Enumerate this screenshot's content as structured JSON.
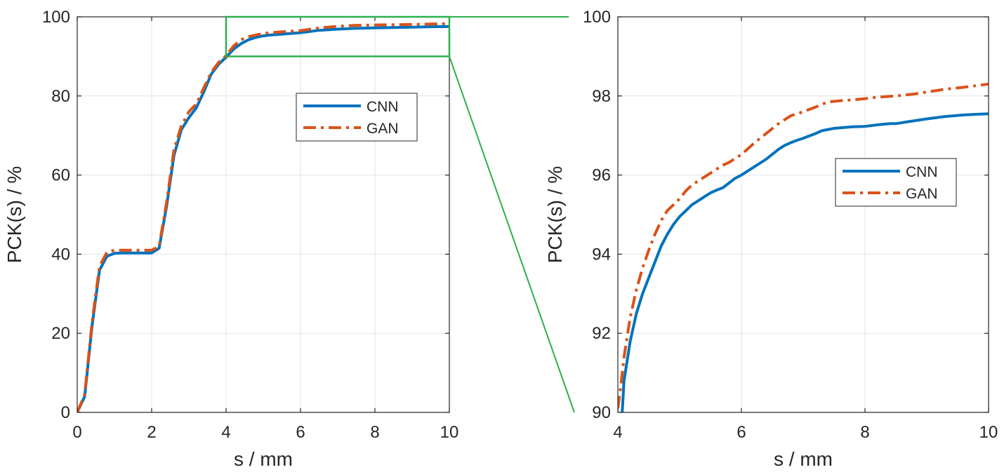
{
  "chart_data": [
    {
      "type": "line",
      "panel": "left",
      "xlabel": "s / mm",
      "ylabel": "PCK(s) / %",
      "xlim": [
        0,
        10
      ],
      "ylim": [
        0,
        100
      ],
      "xticks": [
        0,
        2,
        4,
        6,
        8,
        10
      ],
      "yticks": [
        0,
        20,
        40,
        60,
        80,
        100
      ],
      "grid": true,
      "legend_position": "upper-right-center",
      "series": [
        {
          "name": "CNN",
          "color": "#0072BD",
          "style": "solid",
          "x": [
            0,
            0.2,
            0.4,
            0.6,
            0.8,
            1.0,
            1.2,
            1.5,
            2.0,
            2.2,
            2.4,
            2.6,
            2.8,
            3.0,
            3.2,
            3.4,
            3.6,
            3.8,
            4.0,
            4.2,
            4.4,
            4.6,
            4.8,
            5.0,
            5.2,
            5.5,
            6.0,
            6.5,
            7.0,
            7.5,
            8.0,
            8.5,
            9.0,
            9.5,
            10.0
          ],
          "y": [
            0,
            4,
            22,
            36,
            39.5,
            40.2,
            40.3,
            40.3,
            40.3,
            41.5,
            52,
            65,
            71.5,
            74.5,
            77,
            81,
            85.5,
            88,
            89.8,
            91.8,
            93.2,
            94.2,
            94.8,
            95.2,
            95.4,
            95.6,
            96.0,
            96.6,
            96.9,
            97.1,
            97.2,
            97.3,
            97.4,
            97.5,
            97.55
          ]
        },
        {
          "name": "GAN",
          "color": "#D95319",
          "style": "dashdot",
          "x": [
            0,
            0.2,
            0.4,
            0.6,
            0.8,
            1.0,
            1.2,
            1.5,
            2.0,
            2.2,
            2.4,
            2.6,
            2.8,
            3.0,
            3.2,
            3.4,
            3.6,
            3.8,
            4.0,
            4.2,
            4.4,
            4.6,
            4.8,
            5.0,
            5.2,
            5.5,
            6.0,
            6.5,
            7.0,
            7.5,
            8.0,
            8.5,
            9.0,
            9.5,
            10.0
          ],
          "y": [
            0,
            4.5,
            23,
            37,
            40.5,
            41,
            41,
            41,
            41,
            42,
            53,
            66.5,
            72.5,
            76,
            78,
            82,
            86,
            88.5,
            90.2,
            92.6,
            94.2,
            95.0,
            95.4,
            95.8,
            96.0,
            96.2,
            96.5,
            97.2,
            97.6,
            97.85,
            97.95,
            98.0,
            98.1,
            98.2,
            98.3
          ]
        }
      ],
      "annotation": "zoom-box",
      "zoom_box": {
        "xlim": [
          4,
          10
        ],
        "ylim": [
          90,
          100
        ],
        "color": "#2DB04C"
      }
    },
    {
      "type": "line",
      "panel": "right",
      "xlabel": "s / mm",
      "ylabel": "PCK(s) / %",
      "xlim": [
        4,
        10
      ],
      "ylim": [
        90,
        100
      ],
      "xticks": [
        4,
        6,
        8,
        10
      ],
      "yticks": [
        90,
        92,
        94,
        96,
        98,
        100
      ],
      "grid": true,
      "legend_position": "right-middle",
      "series": [
        {
          "name": "CNN",
          "color": "#0072BD",
          "style": "solid",
          "x": [
            4.07,
            4.1,
            4.2,
            4.3,
            4.4,
            4.5,
            4.6,
            4.7,
            4.8,
            4.9,
            5.0,
            5.1,
            5.2,
            5.3,
            5.4,
            5.5,
            5.6,
            5.7,
            5.8,
            5.9,
            6.0,
            6.2,
            6.4,
            6.6,
            6.7,
            6.8,
            6.9,
            7.0,
            7.2,
            7.3,
            7.5,
            7.8,
            8.0,
            8.2,
            8.4,
            8.5,
            8.7,
            9.0,
            9.3,
            9.6,
            10.0
          ],
          "y": [
            90.0,
            90.8,
            91.8,
            92.5,
            93.0,
            93.4,
            93.8,
            94.2,
            94.5,
            94.75,
            94.95,
            95.1,
            95.25,
            95.35,
            95.45,
            95.55,
            95.62,
            95.68,
            95.8,
            95.92,
            96.0,
            96.2,
            96.4,
            96.65,
            96.75,
            96.82,
            96.88,
            96.93,
            97.05,
            97.12,
            97.18,
            97.22,
            97.23,
            97.27,
            97.3,
            97.3,
            97.35,
            97.42,
            97.48,
            97.52,
            97.55
          ]
        },
        {
          "name": "GAN",
          "color": "#D95319",
          "style": "dashdot",
          "x": [
            4.0,
            4.05,
            4.1,
            4.2,
            4.3,
            4.4,
            4.5,
            4.6,
            4.7,
            4.8,
            4.9,
            5.0,
            5.1,
            5.2,
            5.3,
            5.4,
            5.5,
            5.6,
            5.7,
            5.8,
            5.9,
            6.0,
            6.2,
            6.4,
            6.6,
            6.8,
            7.0,
            7.2,
            7.4,
            7.6,
            7.8,
            8.0,
            8.2,
            8.5,
            8.8,
            9.0,
            9.3,
            9.6,
            10.0
          ],
          "y": [
            90.1,
            90.7,
            91.4,
            92.4,
            93.1,
            93.65,
            94.1,
            94.5,
            94.85,
            95.1,
            95.25,
            95.4,
            95.6,
            95.75,
            95.85,
            95.95,
            96.05,
            96.15,
            96.25,
            96.32,
            96.42,
            96.52,
            96.8,
            97.05,
            97.3,
            97.5,
            97.6,
            97.72,
            97.85,
            97.88,
            97.9,
            97.93,
            97.97,
            98.0,
            98.05,
            98.1,
            98.17,
            98.22,
            98.3
          ]
        }
      ]
    }
  ]
}
